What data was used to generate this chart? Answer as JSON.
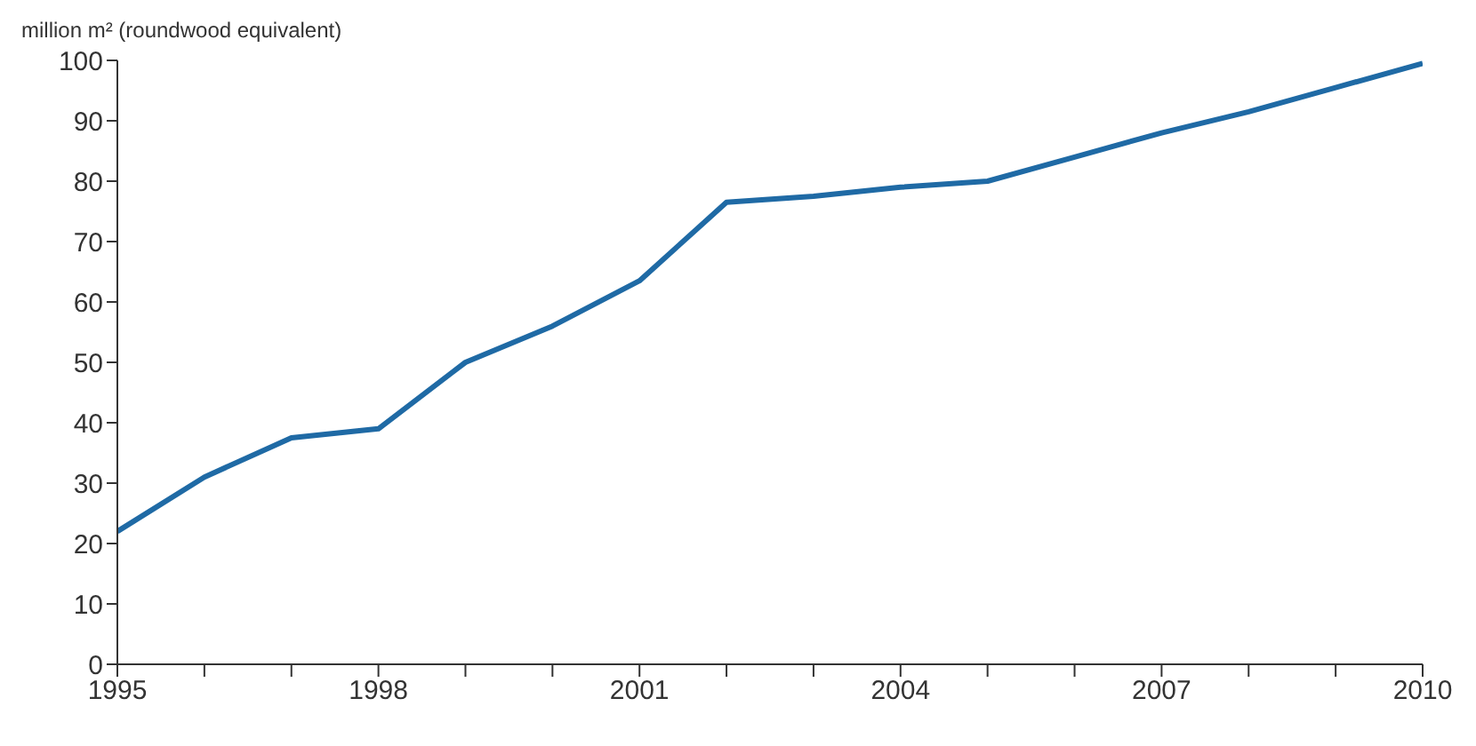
{
  "chart_data": {
    "type": "line",
    "ylabel": "million m² (roundwood equivalent)",
    "x": [
      1995,
      1996,
      1997,
      1998,
      1999,
      2000,
      2001,
      2002,
      2003,
      2004,
      2005,
      2006,
      2007,
      2008,
      2009,
      2010
    ],
    "series": [
      {
        "color": "#1f6aa5",
        "values": [
          22,
          31,
          37.5,
          39,
          50,
          56,
          63.5,
          76.5,
          77.5,
          79,
          80,
          84,
          88,
          91.5,
          95.5,
          99.5
        ]
      }
    ],
    "xlim": [
      1995,
      2010
    ],
    "xticks": [
      1995,
      {
        "value": 1996,
        "label": null
      },
      {
        "value": 1997,
        "label": null
      },
      1998,
      {
        "value": 1999,
        "label": null
      },
      {
        "value": 2000,
        "label": null
      },
      2001,
      {
        "value": 2002,
        "label": null
      },
      {
        "value": 2003,
        "label": null
      },
      2004,
      {
        "value": 2005,
        "label": null
      },
      {
        "value": 2006,
        "label": null
      },
      2007,
      {
        "value": 2008,
        "label": null
      },
      {
        "value": 2009,
        "label": null
      },
      2010
    ],
    "ylim": [
      0,
      100
    ],
    "yticks": [
      0,
      10,
      20,
      30,
      40,
      50,
      60,
      70,
      80,
      90,
      100
    ],
    "grid": false,
    "legend": false,
    "marker": "none",
    "line_style": "solid"
  }
}
